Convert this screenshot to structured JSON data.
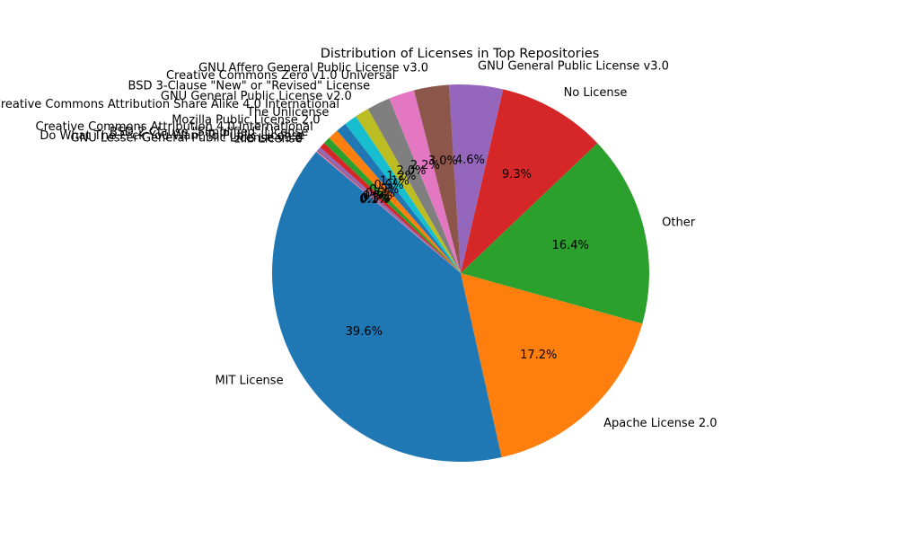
{
  "chart_data": {
    "type": "pie",
    "title": "Distribution of Licenses in Top Repositories",
    "start_angle_deg": 140,
    "direction": "counterclockwise",
    "slices": [
      {
        "label": "MIT License",
        "value": 39.6,
        "pct_text": "39.6%",
        "color": "#1f77b4"
      },
      {
        "label": "Apache License 2.0",
        "value": 17.2,
        "pct_text": "17.2%",
        "color": "#ff7f0e"
      },
      {
        "label": "Other",
        "value": 16.4,
        "pct_text": "16.4%",
        "color": "#2ca02c"
      },
      {
        "label": "No License",
        "value": 9.3,
        "pct_text": "9.3%",
        "color": "#d62728"
      },
      {
        "label": "GNU General Public License v3.0",
        "value": 4.6,
        "pct_text": "4.6%",
        "color": "#9467bd"
      },
      {
        "label": "GNU Affero General Public License v3.0",
        "value": 3.0,
        "pct_text": "3.0%",
        "color": "#8c564b"
      },
      {
        "label": "Creative Commons Zero v1.0 Universal",
        "value": 2.2,
        "pct_text": "2.2%",
        "color": "#e377c2"
      },
      {
        "label": "BSD 3-Clause \"New\" or \"Revised\" License",
        "value": 2.0,
        "pct_text": "2.0%",
        "color": "#7f7f7f"
      },
      {
        "label": "GNU General Public License v2.0",
        "value": 1.2,
        "pct_text": "1.2%",
        "color": "#bcbd22"
      },
      {
        "label": "Creative Commons Attribution Share Alike 4.0 International",
        "value": 1.1,
        "pct_text": "1.1%",
        "color": "#17becf"
      },
      {
        "label": "The Unlicense",
        "value": 0.9,
        "pct_text": "0.9%",
        "color": "#1f77b4"
      },
      {
        "label": "Mozilla Public License 2.0",
        "value": 0.9,
        "pct_text": "0.9%",
        "color": "#ff7f0e"
      },
      {
        "label": "Creative Commons Attribution 4.0 International",
        "value": 0.6,
        "pct_text": "0.6%",
        "color": "#2ca02c"
      },
      {
        "label": "BSD 2-Clause \"Simplified\" License",
        "value": 0.5,
        "pct_text": "0.5%",
        "color": "#d62728"
      },
      {
        "label": "Do What The F*ck You Want To Public License",
        "value": 0.3,
        "pct_text": "0.3%",
        "color": "#9467bd"
      },
      {
        "label": "GNU Lesser General Public License v3.0",
        "value": 0.1,
        "pct_text": "0.1%",
        "color": "#8c564b"
      },
      {
        "label": "zlib License",
        "value": 0.1,
        "pct_text": "0.1%",
        "color": "#e377c2"
      }
    ]
  }
}
